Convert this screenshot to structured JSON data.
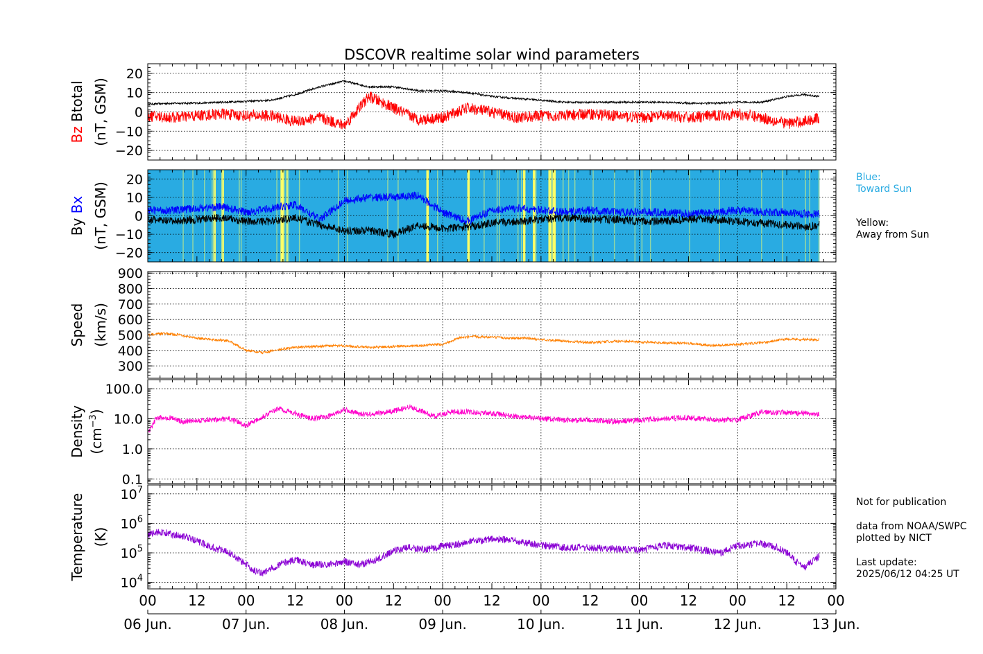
{
  "title": "DSCOVR realtime solar wind parameters",
  "colors": {
    "bz": "#ff0000",
    "btotal": "#000000",
    "bx": "#0000ff",
    "by": "#000000",
    "toward": "#29abe2",
    "away": "#ffff66",
    "speed": "#ff8000",
    "density": "#ff00cc",
    "temperature": "#8a00d4",
    "grid": "#000000"
  },
  "side_notes": {
    "blue_label": "Blue:",
    "blue_desc": "Toward Sun",
    "yellow_label": "Yellow:",
    "yellow_desc": "Away from Sun",
    "not_for_pub": "Not for publication",
    "data_from": "data from NOAA/SWPC",
    "plotted_by": "plotted by NICT",
    "last_update_label": "Last update:",
    "last_update": "2025/06/12 04:25 UT"
  },
  "chart_data": [
    {
      "type": "line",
      "panel": "magnetic field",
      "ylabel_parts": [
        "Bz",
        "Btotal",
        "(nT, GSM)"
      ],
      "ylim": [
        -25,
        25
      ],
      "yticks": [
        -20,
        -10,
        0,
        10,
        20
      ],
      "ytick_labels": [
        "−20",
        "−10",
        "0",
        "10",
        "20"
      ],
      "series": [
        {
          "name": "Btotal",
          "x": [
            0,
            6,
            12,
            18,
            24,
            30,
            36,
            42,
            48,
            54,
            60,
            66,
            72,
            78,
            84,
            90,
            96,
            102,
            108,
            114,
            120,
            126,
            132,
            138,
            144,
            150,
            156,
            160,
            164
          ],
          "values": [
            4,
            4.5,
            4.5,
            5,
            5.5,
            6,
            9,
            13,
            16,
            13,
            13,
            11,
            11,
            10,
            8,
            7,
            6,
            5,
            5,
            5,
            5,
            5,
            4.5,
            4.5,
            5,
            5,
            8,
            9,
            8
          ]
        },
        {
          "name": "Bz",
          "x": [
            0,
            6,
            12,
            18,
            24,
            30,
            36,
            42,
            48,
            54,
            60,
            66,
            72,
            78,
            84,
            90,
            96,
            102,
            108,
            114,
            120,
            126,
            132,
            138,
            144,
            150,
            156,
            160,
            164
          ],
          "values": [
            -2,
            -3,
            -2,
            -1,
            -2,
            -2,
            -5,
            -3,
            -7,
            8,
            2,
            -4,
            -3,
            2,
            0,
            -3,
            -2,
            -2,
            -1,
            -2,
            -3,
            -2,
            -3,
            -2,
            -1,
            -3,
            -6,
            -5,
            -3
          ]
        }
      ]
    },
    {
      "type": "line",
      "panel": "bx by",
      "ylabel_parts": [
        "By",
        "Bx",
        "(nT, GSM)"
      ],
      "ylim": [
        -25,
        25
      ],
      "yticks": [
        -20,
        -10,
        0,
        10,
        20
      ],
      "ytick_labels": [
        "−20",
        "−10",
        "0",
        "10",
        "20"
      ],
      "polarity_away_intervals": [
        [
          16,
          16.6
        ],
        [
          18,
          18.6
        ],
        [
          32.4,
          33.2
        ],
        [
          33.8,
          34.2
        ],
        [
          68,
          68.6
        ],
        [
          78,
          78.6
        ],
        [
          91.6,
          92.2
        ],
        [
          94,
          94.6
        ],
        [
          97.8,
          98.6
        ],
        [
          98.8,
          99.6
        ]
      ],
      "series": [
        {
          "name": "Bx",
          "x": [
            0,
            6,
            12,
            18,
            24,
            30,
            36,
            42,
            48,
            54,
            60,
            66,
            72,
            78,
            84,
            90,
            96,
            102,
            108,
            114,
            120,
            126,
            132,
            138,
            144,
            150,
            156,
            160,
            164
          ],
          "values": [
            3,
            3,
            4,
            5,
            2,
            4,
            6,
            -2,
            8,
            10,
            10,
            11,
            2,
            -3,
            3,
            4,
            3,
            2,
            3,
            2,
            2,
            2,
            1,
            2,
            3,
            2,
            2,
            1,
            1
          ]
        },
        {
          "name": "By",
          "x": [
            0,
            6,
            12,
            18,
            24,
            30,
            36,
            42,
            48,
            54,
            60,
            66,
            72,
            78,
            84,
            90,
            96,
            102,
            108,
            114,
            120,
            126,
            132,
            138,
            144,
            150,
            156,
            160,
            164
          ],
          "values": [
            -2,
            -3,
            -2,
            -1,
            -3,
            -3,
            -1,
            -5,
            -8,
            -8,
            -10,
            -5,
            -7,
            -6,
            -4,
            -3,
            -2,
            -1,
            -2,
            -2,
            -3,
            -3,
            -2,
            -2,
            -3,
            -4,
            -5,
            -6,
            -5
          ]
        }
      ]
    },
    {
      "type": "line",
      "panel": "speed",
      "ylabel_parts": [
        "Speed",
        "(km/s)"
      ],
      "ylim": [
        220,
        910
      ],
      "yticks": [
        300,
        400,
        500,
        600,
        700,
        800,
        900
      ],
      "ytick_labels": [
        "300",
        "400",
        "500",
        "600",
        "700",
        "800",
        "900"
      ],
      "series": [
        {
          "name": "Speed",
          "x": [
            0,
            4,
            8,
            12,
            16,
            20,
            24,
            28,
            32,
            36,
            40,
            44,
            48,
            54,
            60,
            66,
            72,
            76,
            80,
            84,
            88,
            92,
            96,
            102,
            108,
            114,
            120,
            126,
            132,
            138,
            144,
            150,
            156,
            160,
            164
          ],
          "values": [
            500,
            510,
            500,
            480,
            470,
            460,
            400,
            385,
            405,
            420,
            425,
            430,
            430,
            420,
            425,
            430,
            440,
            480,
            490,
            485,
            480,
            480,
            470,
            460,
            450,
            460,
            455,
            450,
            445,
            430,
            440,
            450,
            475,
            470,
            470
          ]
        }
      ]
    },
    {
      "type": "line",
      "panel": "density",
      "ylabel_parts": [
        "Density",
        "(cm",
        "−3",
        ")"
      ],
      "yscale": "log",
      "ylim": [
        0.07,
        200
      ],
      "yticks": [
        0.1,
        1,
        10,
        100
      ],
      "ytick_labels": [
        "0.1",
        "1.0",
        "10.0",
        "100.0"
      ],
      "series": [
        {
          "name": "Density",
          "x": [
            0,
            2,
            4,
            6,
            8,
            12,
            16,
            20,
            24,
            28,
            32,
            36,
            40,
            44,
            48,
            52,
            56,
            60,
            64,
            66,
            70,
            74,
            78,
            84,
            90,
            96,
            102,
            108,
            114,
            120,
            126,
            132,
            136,
            140,
            144,
            150,
            156,
            160,
            164
          ],
          "values": [
            3,
            10,
            11,
            11,
            8,
            9,
            9,
            10,
            6,
            12,
            22,
            15,
            10,
            12,
            20,
            14,
            15,
            18,
            25,
            20,
            12,
            17,
            17,
            15,
            12,
            10,
            9,
            9,
            8,
            9,
            10,
            11,
            10,
            9,
            9,
            17,
            16,
            15,
            14
          ]
        }
      ]
    },
    {
      "type": "line",
      "panel": "temperature",
      "ylabel_parts": [
        "Temperature",
        "(K)"
      ],
      "yscale": "log",
      "ylim": [
        6000,
        20000000
      ],
      "yticks": [
        10000,
        100000,
        1000000,
        10000000
      ],
      "ytick_labels": [
        "10^4",
        "10^5",
        "10^6",
        "10^7"
      ],
      "series": [
        {
          "name": "Temperature",
          "x": [
            0,
            2,
            4,
            6,
            8,
            12,
            16,
            20,
            24,
            26,
            28,
            32,
            36,
            40,
            44,
            48,
            52,
            56,
            60,
            64,
            68,
            72,
            76,
            80,
            84,
            90,
            96,
            102,
            108,
            114,
            120,
            126,
            132,
            136,
            140,
            144,
            150,
            154,
            156,
            160,
            164
          ],
          "values": [
            400000,
            500000,
            500000,
            400000,
            400000,
            250000,
            150000,
            100000,
            40000,
            25000,
            20000,
            40000,
            60000,
            40000,
            40000,
            50000,
            40000,
            60000,
            120000,
            150000,
            130000,
            170000,
            200000,
            250000,
            300000,
            250000,
            180000,
            150000,
            150000,
            140000,
            120000,
            180000,
            150000,
            120000,
            100000,
            180000,
            200000,
            150000,
            100000,
            30000,
            80000
          ]
        }
      ]
    }
  ],
  "x_axis": {
    "range_hours": [
      0,
      168
    ],
    "hour_ticks": [
      {
        "h": 0,
        "label": "00"
      },
      {
        "h": 12,
        "label": "12"
      },
      {
        "h": 24,
        "label": "00"
      },
      {
        "h": 36,
        "label": "12"
      },
      {
        "h": 48,
        "label": "00"
      },
      {
        "h": 60,
        "label": "12"
      },
      {
        "h": 72,
        "label": "00"
      },
      {
        "h": 84,
        "label": "12"
      },
      {
        "h": 96,
        "label": "00"
      },
      {
        "h": 108,
        "label": "12"
      },
      {
        "h": 120,
        "label": "00"
      },
      {
        "h": 132,
        "label": "12"
      },
      {
        "h": 144,
        "label": "00"
      },
      {
        "h": 156,
        "label": "12"
      },
      {
        "h": 168,
        "label": "00"
      }
    ],
    "date_labels": [
      {
        "h": 0,
        "label": "06 Jun."
      },
      {
        "h": 24,
        "label": "07 Jun."
      },
      {
        "h": 48,
        "label": "08 Jun."
      },
      {
        "h": 72,
        "label": "09 Jun."
      },
      {
        "h": 96,
        "label": "10 Jun."
      },
      {
        "h": 120,
        "label": "11 Jun."
      },
      {
        "h": 144,
        "label": "12 Jun."
      },
      {
        "h": 168,
        "label": "13 Jun."
      }
    ]
  }
}
